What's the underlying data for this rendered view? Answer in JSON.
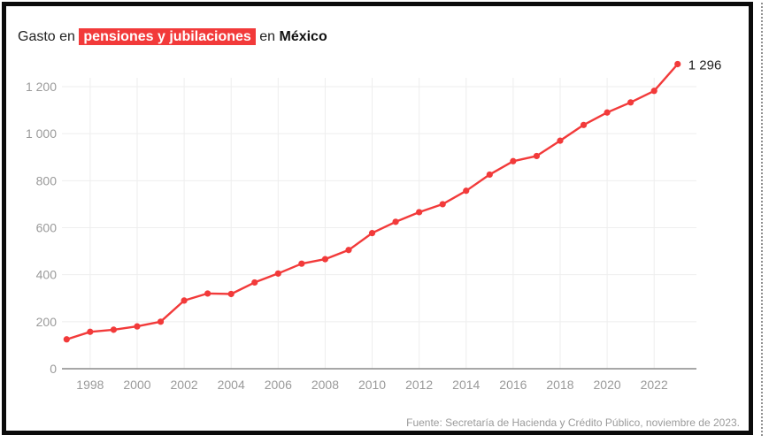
{
  "title": {
    "prefix": "Gasto en",
    "highlight": "pensiones y jubilaciones",
    "middle": "en",
    "country": "México"
  },
  "source": "Fuente: Secretaría de Hacienda y Crédito Público, noviembre de 2023.",
  "colors": {
    "line": "#f23a3a",
    "highlight_bg": "#f23a3a",
    "grid": "#eeeeee",
    "axis_text": "#9a9a9a",
    "baseline": "#8a8a8a"
  },
  "chart_data": {
    "type": "line",
    "x": [
      1997,
      1998,
      1999,
      2000,
      2001,
      2002,
      2003,
      2004,
      2005,
      2006,
      2007,
      2008,
      2009,
      2010,
      2011,
      2012,
      2013,
      2014,
      2015,
      2016,
      2017,
      2018,
      2019,
      2020,
      2021,
      2022,
      2023
    ],
    "series": [
      {
        "values": [
          125,
          157,
          166,
          180,
          200,
          290,
          320,
          318,
          367,
          405,
          447,
          466,
          505,
          577,
          625,
          666,
          700,
          757,
          826,
          883,
          905,
          970,
          1037,
          1090,
          1133,
          1182,
          1296
        ]
      }
    ],
    "end_label": "1 296",
    "x_ticks": [
      "1998",
      "2000",
      "2002",
      "2004",
      "2006",
      "2008",
      "2010",
      "2012",
      "2014",
      "2016",
      "2018",
      "2020",
      "2022"
    ],
    "x_tick_values": [
      1998,
      2000,
      2002,
      2004,
      2006,
      2008,
      2010,
      2012,
      2014,
      2016,
      2018,
      2020,
      2022
    ],
    "y_ticks": [
      "0",
      "200",
      "400",
      "600",
      "800",
      "1 000",
      "1 200"
    ],
    "y_tick_values": [
      0,
      200,
      400,
      600,
      800,
      1000,
      1200
    ],
    "xlim": [
      1996.8,
      2023.8
    ],
    "ylim": [
      0,
      1200
    ],
    "xlabel": "",
    "ylabel": "",
    "grid": true
  }
}
